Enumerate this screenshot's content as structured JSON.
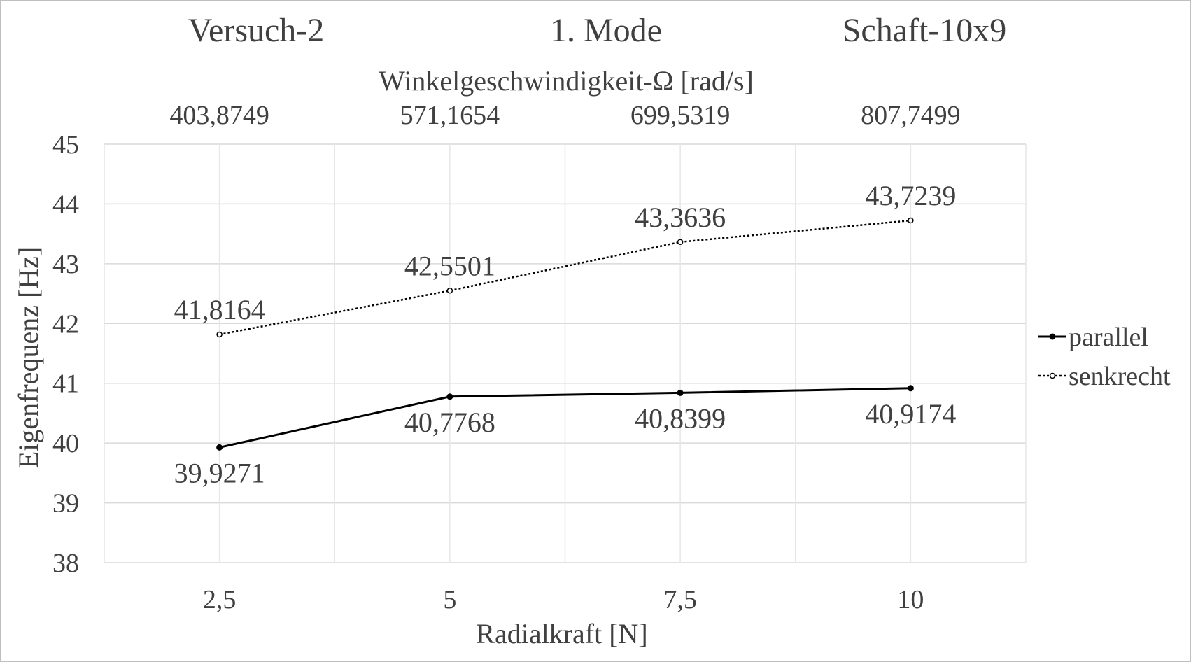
{
  "chart_data": {
    "type": "line",
    "header": {
      "left": "Versuch-2",
      "center": "1. Mode",
      "right": "Schaft-10x9"
    },
    "secondary_x": {
      "label": "Winkelgeschwindigkeit-Ω  [rad/s]",
      "tick_labels": [
        "403,8749",
        "571,1654",
        "699,5319",
        "807,7499"
      ]
    },
    "xlabel": "Radialkraft [N]",
    "ylabel": "Eigenfrequenz [Hz]",
    "categories": [
      "2,5",
      "5",
      "7,5",
      "10"
    ],
    "ylim": [
      38,
      45
    ],
    "y_ticks": [
      "38",
      "39",
      "40",
      "41",
      "42",
      "43",
      "44",
      "45"
    ],
    "grid": true,
    "legend_position": "right",
    "series": [
      {
        "name": "parallel",
        "style": "solid",
        "color": "#000000",
        "values": [
          39.9271,
          40.7768,
          40.8399,
          40.9174
        ],
        "labels": [
          "39,9271",
          "40,7768",
          "40,8399",
          "40,9174"
        ],
        "label_position": "below"
      },
      {
        "name": "senkrecht",
        "style": "dotted",
        "color": "#000000",
        "values": [
          41.8164,
          42.5501,
          43.3636,
          43.7239
        ],
        "labels": [
          "41,8164",
          "42,5501",
          "43,3636",
          "43,7239"
        ],
        "label_position": "above"
      }
    ]
  }
}
